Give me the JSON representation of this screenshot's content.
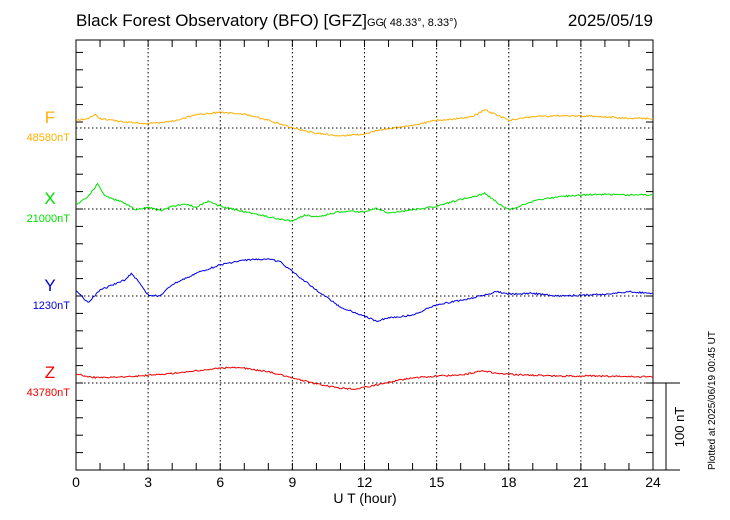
{
  "chart_data": {
    "type": "line",
    "title": "Black Forest Observatory (BFO)  [GFZ]",
    "coords_prefix": "GG",
    "coords": "( 48.33°,   8.33°)",
    "date": "2025/05/19",
    "xlabel": "U T (hour)",
    "xlim": [
      0,
      24
    ],
    "xticks": [
      "0",
      "3",
      "6",
      "9",
      "12",
      "15",
      "18",
      "21",
      "24"
    ],
    "scale_label": "100 nT",
    "plotted_note": "Plotted at 2025/06/19 00:45 UT",
    "grid": true,
    "series": [
      {
        "name": "F",
        "baseline_label": "48580nT",
        "color": "#ffb000",
        "points": [
          [
            0,
            9
          ],
          [
            0.5,
            11
          ],
          [
            0.8,
            15
          ],
          [
            1,
            11
          ],
          [
            2,
            7
          ],
          [
            3,
            5
          ],
          [
            4,
            8
          ],
          [
            5,
            15
          ],
          [
            6,
            18
          ],
          [
            7,
            16
          ],
          [
            8,
            9
          ],
          [
            9,
            0
          ],
          [
            10,
            -6
          ],
          [
            11,
            -9
          ],
          [
            12,
            -7
          ],
          [
            12.5,
            -3
          ],
          [
            13,
            -1
          ],
          [
            14,
            3
          ],
          [
            15,
            9
          ],
          [
            16,
            11
          ],
          [
            16.5,
            13
          ],
          [
            17,
            21
          ],
          [
            17.5,
            15
          ],
          [
            18,
            9
          ],
          [
            19,
            13
          ],
          [
            20,
            14
          ],
          [
            21,
            14
          ],
          [
            22,
            13
          ],
          [
            23,
            11
          ],
          [
            24,
            11
          ]
        ]
      },
      {
        "name": "X",
        "baseline_label": "21000nT",
        "color": "#00e000",
        "points": [
          [
            0,
            5
          ],
          [
            0.5,
            14
          ],
          [
            0.9,
            29
          ],
          [
            1.2,
            15
          ],
          [
            2,
            7
          ],
          [
            2.5,
            -1
          ],
          [
            3,
            2
          ],
          [
            3.5,
            -2
          ],
          [
            4,
            3
          ],
          [
            4.5,
            6
          ],
          [
            5,
            2
          ],
          [
            5.5,
            9
          ],
          [
            6,
            3
          ],
          [
            7,
            -3
          ],
          [
            8,
            -9
          ],
          [
            9,
            -14
          ],
          [
            9.5,
            -7
          ],
          [
            10,
            -9
          ],
          [
            11,
            -3
          ],
          [
            12,
            -3
          ],
          [
            12.5,
            1
          ],
          [
            13,
            -5
          ],
          [
            14,
            -1
          ],
          [
            15,
            3
          ],
          [
            16,
            11
          ],
          [
            16.5,
            14
          ],
          [
            17,
            18
          ],
          [
            17.5,
            8
          ],
          [
            18,
            -1
          ],
          [
            19,
            9
          ],
          [
            20,
            14
          ],
          [
            21,
            16
          ],
          [
            22,
            17
          ],
          [
            23,
            16
          ],
          [
            24,
            16
          ]
        ]
      },
      {
        "name": "Y",
        "baseline_label": "1230nT",
        "color": "#0000e0",
        "points": [
          [
            0,
            7
          ],
          [
            0.5,
            -8
          ],
          [
            1,
            7
          ],
          [
            2,
            18
          ],
          [
            2.3,
            26
          ],
          [
            2.7,
            13
          ],
          [
            3,
            1
          ],
          [
            3.5,
            0
          ],
          [
            4,
            13
          ],
          [
            5,
            26
          ],
          [
            6,
            36
          ],
          [
            7,
            41
          ],
          [
            8,
            43
          ],
          [
            8.5,
            39
          ],
          [
            9,
            28
          ],
          [
            10,
            7
          ],
          [
            11,
            -13
          ],
          [
            12,
            -23
          ],
          [
            12.5,
            -29
          ],
          [
            13,
            -25
          ],
          [
            14,
            -22
          ],
          [
            15,
            -10
          ],
          [
            16,
            -5
          ],
          [
            17,
            1
          ],
          [
            17.5,
            5
          ],
          [
            18,
            2
          ],
          [
            19,
            3
          ],
          [
            20,
            0
          ],
          [
            21,
            1
          ],
          [
            22,
            2
          ],
          [
            23,
            5
          ],
          [
            24,
            3
          ]
        ]
      },
      {
        "name": "Z",
        "baseline_label": "43780nT",
        "color": "#f00000",
        "points": [
          [
            0,
            11
          ],
          [
            0.5,
            7
          ],
          [
            1,
            6
          ],
          [
            2,
            7
          ],
          [
            3,
            9
          ],
          [
            4,
            11
          ],
          [
            5,
            14
          ],
          [
            6,
            17
          ],
          [
            6.5,
            18
          ],
          [
            7,
            17
          ],
          [
            8,
            13
          ],
          [
            9,
            6
          ],
          [
            10,
            -1
          ],
          [
            11,
            -6
          ],
          [
            11.5,
            -7
          ],
          [
            12,
            -5
          ],
          [
            13,
            1
          ],
          [
            14,
            6
          ],
          [
            15,
            8
          ],
          [
            16,
            9
          ],
          [
            17,
            14
          ],
          [
            17.5,
            11
          ],
          [
            18,
            10
          ],
          [
            19,
            9
          ],
          [
            20,
            8
          ],
          [
            22,
            8
          ],
          [
            24,
            7
          ]
        ]
      }
    ]
  }
}
